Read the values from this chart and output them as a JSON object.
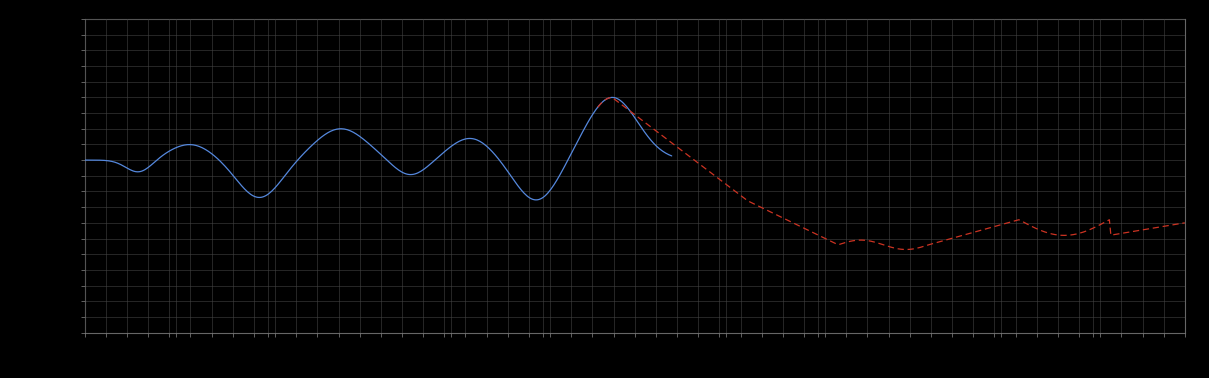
{
  "background_color": "#000000",
  "plot_bg_color": "#000000",
  "grid_color": "#444444",
  "line1_color": "#5588dd",
  "line2_color": "#cc3322",
  "fig_width": 12.09,
  "fig_height": 3.78,
  "dpi": 100,
  "xlim": [
    0,
    365
  ],
  "ylim": [
    0,
    10
  ],
  "n_points": 730,
  "transition_idx": 280,
  "blue_end_idx": 310
}
